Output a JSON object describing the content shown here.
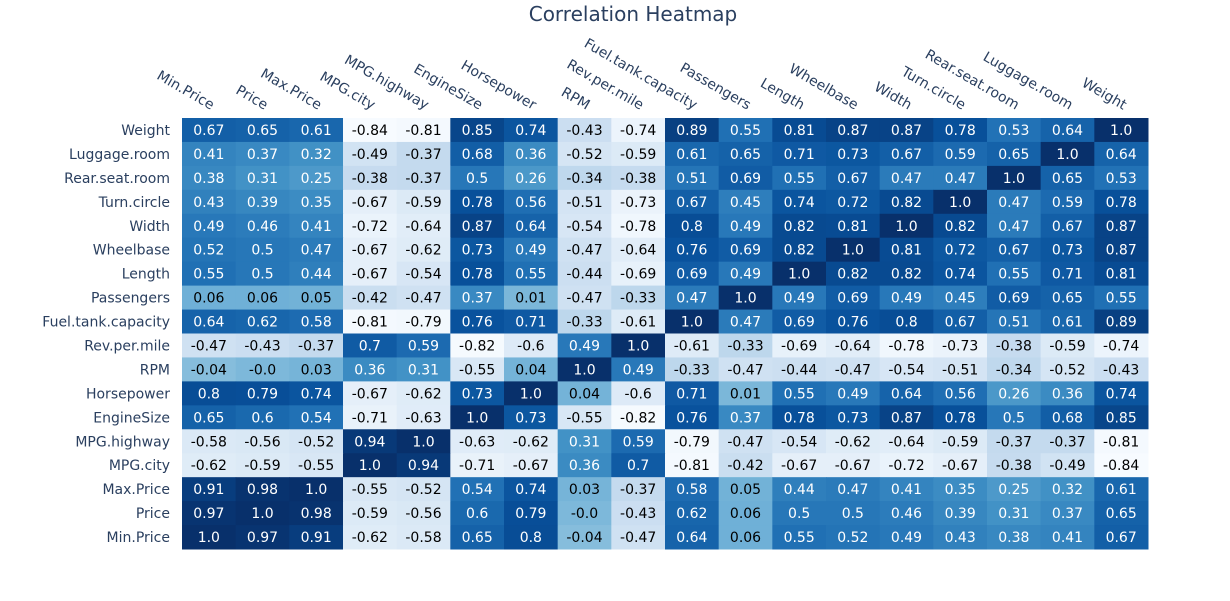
{
  "chart_data": {
    "type": "heatmap",
    "title": "Correlation Heatmap",
    "x_labels": [
      "Min.Price",
      "Price",
      "Max.Price",
      "MPG.city",
      "MPG.highway",
      "EngineSize",
      "Horsepower",
      "RPM",
      "Rev.per.mile",
      "Fuel.tank.capacity",
      "Passengers",
      "Length",
      "Wheelbase",
      "Width",
      "Turn.circle",
      "Rear.seat.room",
      "Luggage.room",
      "Weight"
    ],
    "y_labels": [
      "Weight",
      "Luggage.room",
      "Rear.seat.room",
      "Turn.circle",
      "Width",
      "Wheelbase",
      "Length",
      "Passengers",
      "Fuel.tank.capacity",
      "Rev.per.mile",
      "RPM",
      "Horsepower",
      "EngineSize",
      "MPG.highway",
      "MPG.city",
      "Max.Price",
      "Price",
      "Min.Price"
    ],
    "z": [
      [
        "0.67",
        "0.65",
        "0.61",
        "-0.84",
        "-0.81",
        "0.85",
        "0.74",
        "-0.43",
        "-0.74",
        "0.89",
        "0.55",
        "0.81",
        "0.87",
        "0.87",
        "0.78",
        "0.53",
        "0.64",
        "1.0"
      ],
      [
        "0.41",
        "0.37",
        "0.32",
        "-0.49",
        "-0.37",
        "0.68",
        "0.36",
        "-0.52",
        "-0.59",
        "0.61",
        "0.65",
        "0.71",
        "0.73",
        "0.67",
        "0.59",
        "0.65",
        "1.0",
        "0.64"
      ],
      [
        "0.38",
        "0.31",
        "0.25",
        "-0.38",
        "-0.37",
        "0.5",
        "0.26",
        "-0.34",
        "-0.38",
        "0.51",
        "0.69",
        "0.55",
        "0.67",
        "0.47",
        "0.47",
        "1.0",
        "0.65",
        "0.53"
      ],
      [
        "0.43",
        "0.39",
        "0.35",
        "-0.67",
        "-0.59",
        "0.78",
        "0.56",
        "-0.51",
        "-0.73",
        "0.67",
        "0.45",
        "0.74",
        "0.72",
        "0.82",
        "1.0",
        "0.47",
        "0.59",
        "0.78"
      ],
      [
        "0.49",
        "0.46",
        "0.41",
        "-0.72",
        "-0.64",
        "0.87",
        "0.64",
        "-0.54",
        "-0.78",
        "0.8",
        "0.49",
        "0.82",
        "0.81",
        "1.0",
        "0.82",
        "0.47",
        "0.67",
        "0.87"
      ],
      [
        "0.52",
        "0.5",
        "0.47",
        "-0.67",
        "-0.62",
        "0.73",
        "0.49",
        "-0.47",
        "-0.64",
        "0.76",
        "0.69",
        "0.82",
        "1.0",
        "0.81",
        "0.72",
        "0.67",
        "0.73",
        "0.87"
      ],
      [
        "0.55",
        "0.5",
        "0.44",
        "-0.67",
        "-0.54",
        "0.78",
        "0.55",
        "-0.44",
        "-0.69",
        "0.69",
        "0.49",
        "1.0",
        "0.82",
        "0.82",
        "0.74",
        "0.55",
        "0.71",
        "0.81"
      ],
      [
        "0.06",
        "0.06",
        "0.05",
        "-0.42",
        "-0.47",
        "0.37",
        "0.01",
        "-0.47",
        "-0.33",
        "0.47",
        "1.0",
        "0.49",
        "0.69",
        "0.49",
        "0.45",
        "0.69",
        "0.65",
        "0.55"
      ],
      [
        "0.64",
        "0.62",
        "0.58",
        "-0.81",
        "-0.79",
        "0.76",
        "0.71",
        "-0.33",
        "-0.61",
        "1.0",
        "0.47",
        "0.69",
        "0.76",
        "0.8",
        "0.67",
        "0.51",
        "0.61",
        "0.89"
      ],
      [
        "-0.47",
        "-0.43",
        "-0.37",
        "0.7",
        "0.59",
        "-0.82",
        "-0.6",
        "0.49",
        "1.0",
        "-0.61",
        "-0.33",
        "-0.69",
        "-0.64",
        "-0.78",
        "-0.73",
        "-0.38",
        "-0.59",
        "-0.74"
      ],
      [
        "-0.04",
        "-0.0",
        "0.03",
        "0.36",
        "0.31",
        "-0.55",
        "0.04",
        "1.0",
        "0.49",
        "-0.33",
        "-0.47",
        "-0.44",
        "-0.47",
        "-0.54",
        "-0.51",
        "-0.34",
        "-0.52",
        "-0.43"
      ],
      [
        "0.8",
        "0.79",
        "0.74",
        "-0.67",
        "-0.62",
        "0.73",
        "1.0",
        "0.04",
        "-0.6",
        "0.71",
        "0.01",
        "0.55",
        "0.49",
        "0.64",
        "0.56",
        "0.26",
        "0.36",
        "0.74"
      ],
      [
        "0.65",
        "0.6",
        "0.54",
        "-0.71",
        "-0.63",
        "1.0",
        "0.73",
        "-0.55",
        "-0.82",
        "0.76",
        "0.37",
        "0.78",
        "0.73",
        "0.87",
        "0.78",
        "0.5",
        "0.68",
        "0.85"
      ],
      [
        "-0.58",
        "-0.56",
        "-0.52",
        "0.94",
        "1.0",
        "-0.63",
        "-0.62",
        "0.31",
        "0.59",
        "-0.79",
        "-0.47",
        "-0.54",
        "-0.62",
        "-0.64",
        "-0.59",
        "-0.37",
        "-0.37",
        "-0.81"
      ],
      [
        "-0.62",
        "-0.59",
        "-0.55",
        "1.0",
        "0.94",
        "-0.71",
        "-0.67",
        "0.36",
        "0.7",
        "-0.81",
        "-0.42",
        "-0.67",
        "-0.67",
        "-0.72",
        "-0.67",
        "-0.38",
        "-0.49",
        "-0.84"
      ],
      [
        "0.91",
        "0.98",
        "1.0",
        "-0.55",
        "-0.52",
        "0.54",
        "0.74",
        "0.03",
        "-0.37",
        "0.58",
        "0.05",
        "0.44",
        "0.47",
        "0.41",
        "0.35",
        "0.25",
        "0.32",
        "0.61"
      ],
      [
        "0.97",
        "1.0",
        "0.98",
        "-0.59",
        "-0.56",
        "0.6",
        "0.79",
        "-0.0",
        "-0.43",
        "0.62",
        "0.06",
        "0.5",
        "0.5",
        "0.46",
        "0.39",
        "0.31",
        "0.37",
        "0.65"
      ],
      [
        "1.0",
        "0.97",
        "0.91",
        "-0.62",
        "-0.58",
        "0.65",
        "0.8",
        "-0.04",
        "-0.47",
        "0.64",
        "0.06",
        "0.55",
        "0.52",
        "0.49",
        "0.43",
        "0.38",
        "0.41",
        "0.67"
      ]
    ],
    "zmin": -0.84,
    "zmax": 1.0,
    "colorscale": [
      [
        0.0,
        "#f7fbff"
      ],
      [
        0.125,
        "#deebf7"
      ],
      [
        0.25,
        "#c6dbef"
      ],
      [
        0.375,
        "#9ecae1"
      ],
      [
        0.5,
        "#6baed6"
      ],
      [
        0.625,
        "#4292c6"
      ],
      [
        0.75,
        "#2171b5"
      ],
      [
        0.875,
        "#08519c"
      ],
      [
        1.0,
        "#08306b"
      ]
    ],
    "text_color_dark": "#000000",
    "text_color_light": "#ffffff",
    "title_color": "#2a3f5f",
    "axis_label_color": "#2a3f5f"
  }
}
